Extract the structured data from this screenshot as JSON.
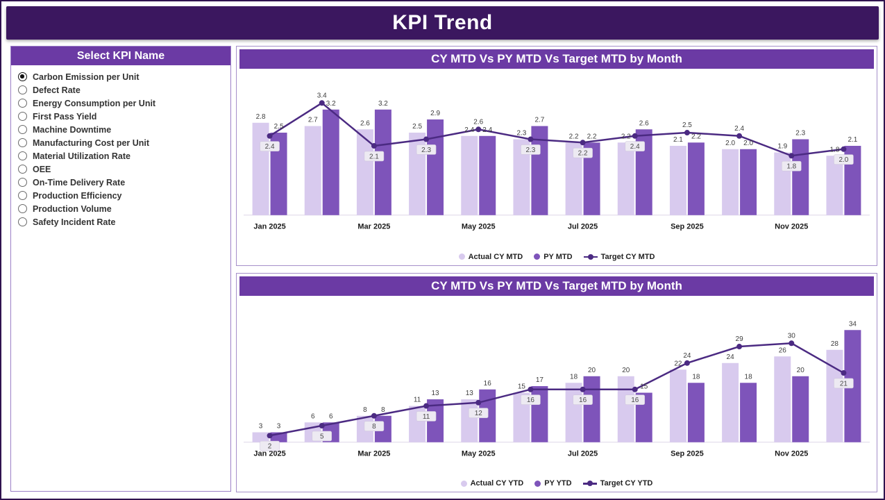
{
  "header": {
    "title": "KPI Trend"
  },
  "kpi_selector": {
    "title": "Select KPI Name",
    "options": [
      {
        "label": "Carbon Emission per Unit",
        "selected": true
      },
      {
        "label": "Defect Rate",
        "selected": false
      },
      {
        "label": "Energy Consumption per Unit",
        "selected": false
      },
      {
        "label": "First Pass Yield",
        "selected": false
      },
      {
        "label": "Machine Downtime",
        "selected": false
      },
      {
        "label": "Manufacturing Cost per Unit",
        "selected": false
      },
      {
        "label": "Material Utilization Rate",
        "selected": false
      },
      {
        "label": "OEE",
        "selected": false
      },
      {
        "label": "On-Time Delivery Rate",
        "selected": false
      },
      {
        "label": "Production Efficiency",
        "selected": false
      },
      {
        "label": "Production Volume",
        "selected": false
      },
      {
        "label": "Safety Incident Rate",
        "selected": false
      }
    ]
  },
  "chart_data": [
    {
      "type": "bar",
      "subtype": "clustered-bars-with-target-line",
      "title": "CY MTD Vs PY MTD Vs Target MTD by Month",
      "categories": [
        "Jan 2025",
        "Feb 2025",
        "Mar 2025",
        "Apr 2025",
        "May 2025",
        "Jun 2025",
        "Jul 2025",
        "Aug 2025",
        "Sep 2025",
        "Oct 2025",
        "Nov 2025",
        "Dec 2025"
      ],
      "tick_every": 2,
      "series": [
        {
          "name": "Actual CY MTD",
          "type": "bar",
          "values": [
            2.8,
            2.7,
            2.6,
            2.5,
            2.4,
            2.3,
            2.2,
            2.2,
            2.1,
            2.0,
            1.9,
            1.8
          ]
        },
        {
          "name": "PY MTD",
          "type": "bar",
          "values": [
            2.5,
            3.2,
            3.2,
            2.9,
            2.4,
            2.7,
            2.2,
            2.6,
            2.2,
            2.0,
            2.3,
            2.1
          ]
        },
        {
          "name": "Target CY MTD",
          "type": "line",
          "values": [
            2.4,
            3.4,
            2.1,
            2.3,
            2.6,
            2.3,
            2.2,
            2.4,
            2.5,
            2.4,
            1.8,
            2.0
          ]
        }
      ],
      "xlabel": "",
      "ylabel": "",
      "ylim": [
        0,
        3.6
      ],
      "grid": false,
      "decimals": 1,
      "legend_position": "bottom"
    },
    {
      "type": "bar",
      "subtype": "clustered-bars-with-target-line",
      "title": "CY MTD Vs PY MTD Vs Target MTD by Month",
      "categories": [
        "Jan 2025",
        "Feb 2025",
        "Mar 2025",
        "Apr 2025",
        "May 2025",
        "Jun 2025",
        "Jul 2025",
        "Aug 2025",
        "Sep 2025",
        "Oct 2025",
        "Nov 2025",
        "Dec 2025"
      ],
      "tick_every": 2,
      "series": [
        {
          "name": "Actual CY YTD",
          "type": "bar",
          "values": [
            3,
            6,
            8,
            11,
            13,
            15,
            18,
            20,
            22,
            24,
            26,
            28
          ]
        },
        {
          "name": "PY YTD",
          "type": "bar",
          "values": [
            3,
            6,
            8,
            13,
            16,
            17,
            20,
            15,
            18,
            18,
            20,
            34
          ]
        },
        {
          "name": "Target CY YTD",
          "type": "line",
          "values": [
            2,
            5,
            8,
            11,
            12,
            16,
            16,
            16,
            24,
            29,
            30,
            21
          ]
        }
      ],
      "xlabel": "",
      "ylabel": "",
      "ylim": [
        0,
        36
      ],
      "grid": false,
      "decimals": 0,
      "legend_position": "bottom"
    }
  ],
  "style": {
    "header_bg": "#3B175F",
    "title_bg": "#6B3AA4",
    "page_border": "#30124F",
    "bar_actual": "#D8CAEE",
    "bar_py": "#7E54BA",
    "target_line": "#4B2A82",
    "label_box_bg": "#EDEAF2",
    "label_text": "#3C3C3C"
  }
}
